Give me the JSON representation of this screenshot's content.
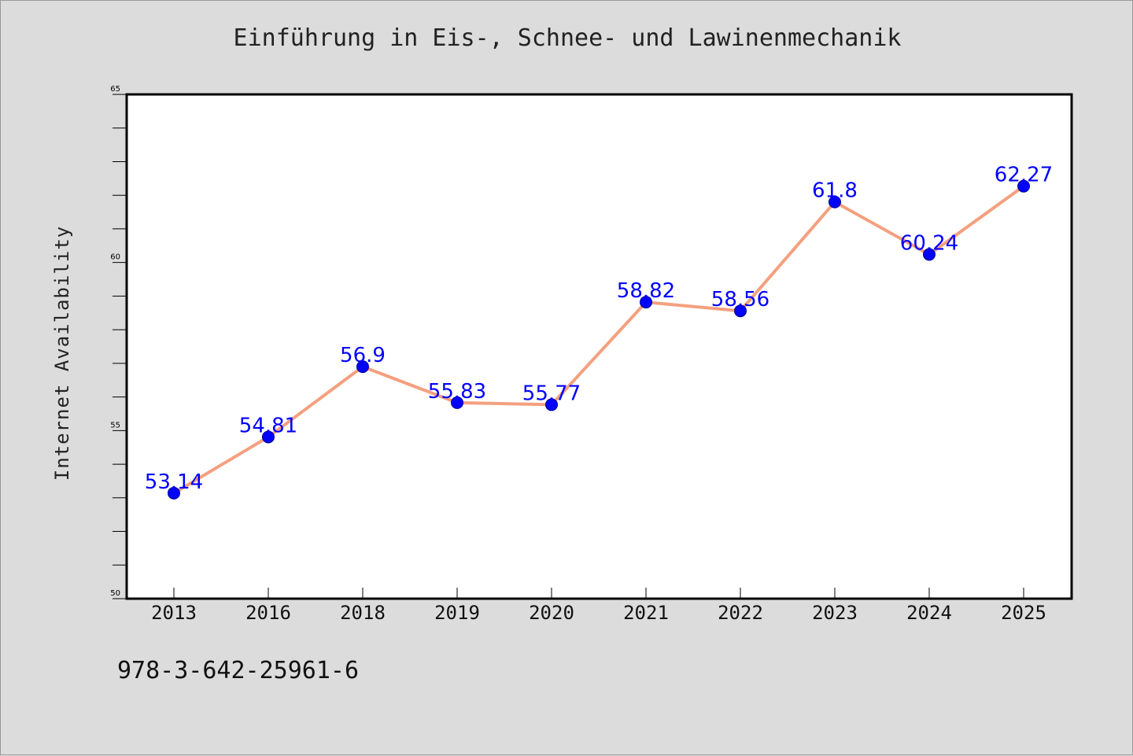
{
  "footer": {
    "isbn": "978-3-642-25961-6"
  },
  "colors": {
    "line": "#f4a07f",
    "marker": "#0000ff",
    "label": "#0000ff",
    "background": "#dcdcdc",
    "plot_background": "#ffffff"
  },
  "chart_data": {
    "type": "line",
    "title": "Einführung in Eis-, Schnee- und Lawinenmechanik",
    "xlabel": "",
    "ylabel": "Internet Availability",
    "categories": [
      "2013",
      "2016",
      "2018",
      "2019",
      "2020",
      "2021",
      "2022",
      "2023",
      "2024",
      "2025"
    ],
    "series": [
      {
        "values": [
          53.14,
          54.81,
          56.9,
          55.83,
          55.77,
          58.82,
          58.56,
          61.8,
          60.24,
          62.27
        ]
      }
    ],
    "data_labels": [
      "53.14",
      "54.81",
      "56.9",
      "55.83",
      "55.77",
      "58.82",
      "58.56",
      "61.8",
      "60.24",
      "62.27"
    ],
    "ylim": [
      50,
      65
    ],
    "yticks": [
      "50",
      "55",
      "60",
      "65"
    ],
    "grid": false,
    "legend": "none"
  }
}
